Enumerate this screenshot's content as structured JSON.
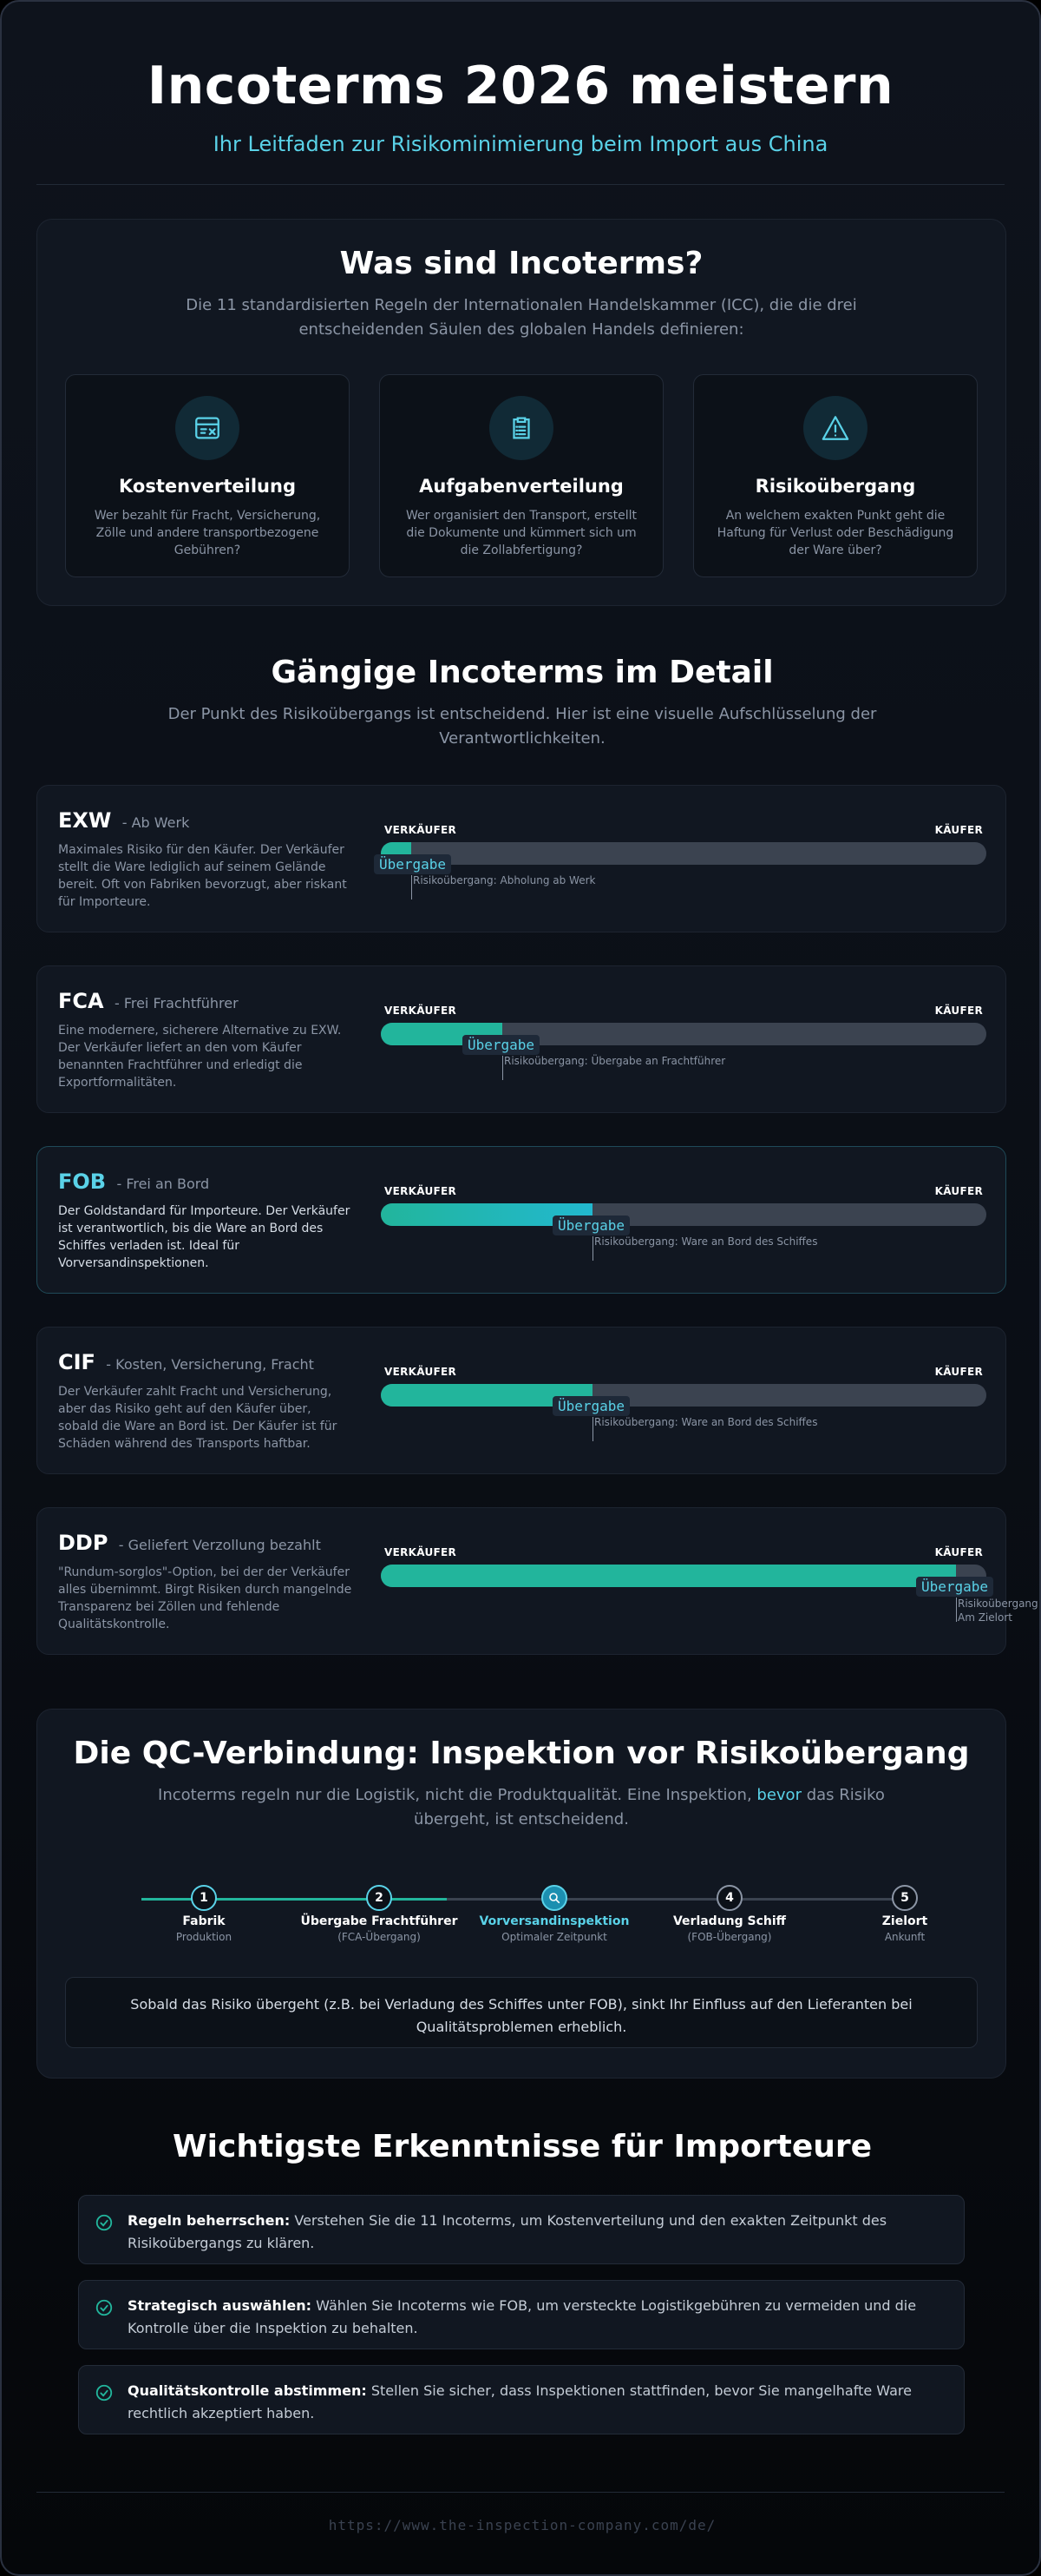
{
  "hero": {
    "title": "Incoterms 2026 meistern",
    "subtitle": "Ihr Leitfaden zur Risikominimierung beim Import aus China"
  },
  "intro": {
    "title": "Was sind Incoterms?",
    "subtitle": "Die 11 standardisierten Regeln der Internationalen Handelskammer (ICC), die die drei entscheidenden Säulen des globalen Handels definieren:",
    "cards": [
      {
        "icon": "invoice-icon",
        "title": "Kostenverteilung",
        "text": "Wer bezahlt für Fracht, Versicherung, Zölle und andere transportbezogene Gebühren?"
      },
      {
        "icon": "clipboard-list-icon",
        "title": "Aufgabenverteilung",
        "text": "Wer organisiert den Transport, erstellt die Dokumente und kümmert sich um die Zollabfertigung?"
      },
      {
        "icon": "warning-triangle-icon",
        "title": "Risikoübergang",
        "text": "An welchem exakten Punkt geht die Haftung für Verlust oder Beschädigung der Ware über?"
      }
    ]
  },
  "details": {
    "title": "Gängige Incoterms im Detail",
    "subtitle": "Der Punkt des Risikoübergangs ist entscheidend. Hier ist eine visuelle Aufschlüsselung der Verantwortlichkeiten.",
    "seller_label": "VERKÄUFER",
    "buyer_label": "KÄUFER",
    "handover_label": "Übergabe",
    "terms": [
      {
        "code": "EXW",
        "name": "- Ab Werk",
        "desc": "Maximales Risiko für den Käufer. Der Verkäufer stellt die Ware lediglich auf seinem Gelände bereit. Oft von Fabriken bevorzugt, aber riskant für Importeure.",
        "seller_share": 0.05,
        "note": "Risikoübergang: Abholung ab Werk",
        "highlight": false
      },
      {
        "code": "FCA",
        "name": "- Frei Frachtführer",
        "desc": "Eine modernere, sicherere Alternative zu EXW. Der Verkäufer liefert an den vom Käufer benannten Frachtführer und erledigt die Exportformalitäten.",
        "seller_share": 0.2,
        "note": "Risikoübergang: Übergabe an Frachtführer",
        "highlight": false
      },
      {
        "code": "FOB",
        "name": "- Frei an Bord",
        "desc": "Der Goldstandard für Importeure. Der Verkäufer ist verantwortlich, bis die Ware an Bord des Schiffes verladen ist. Ideal für Vorversandinspektionen.",
        "seller_share": 0.35,
        "note": "Risikoübergang: Ware an Bord des Schiffes",
        "highlight": true
      },
      {
        "code": "CIF",
        "name": "- Kosten, Versicherung, Fracht",
        "desc": "Der Verkäufer zahlt Fracht und Versicherung, aber das Risiko geht auf den Käufer über, sobald die Ware an Bord ist. Der Käufer ist für Schäden während des Transports haftbar.",
        "seller_share": 0.35,
        "note": "Risikoübergang: Ware an Bord des Schiffes",
        "highlight": false
      },
      {
        "code": "DDP",
        "name": "- Geliefert Verzollung bezahlt",
        "desc": "\"Rundum-sorglos\"-Option, bei der der Verkäufer alles übernimmt. Birgt Risiken durch mangelnde Transparenz bei Zöllen und fehlende Qualitätskontrolle.",
        "seller_share": 0.95,
        "note": "Risikoübergang: Am Zielort",
        "highlight": false
      }
    ]
  },
  "qc": {
    "title": "Die QC-Verbindung: Inspektion vor Risikoübergang",
    "subtitle_before": "Incoterms regeln nur die Logistik, nicht die Produktqualität. Eine Inspektion, ",
    "subtitle_emph": "bevor",
    "subtitle_after": " das Risiko übergeht, ist entscheidend.",
    "steps": [
      {
        "num": "1",
        "title": "Fabrik",
        "sub": "Produktion",
        "state": "done"
      },
      {
        "num": "2",
        "title": "Übergabe Frachtführer",
        "sub": "(FCA-Übergang)",
        "state": "done"
      },
      {
        "num": "",
        "title": "Vorversandinspektion",
        "sub": "Optimaler Zeitpunkt",
        "state": "active"
      },
      {
        "num": "4",
        "title": "Verladung Schiff",
        "sub": "(FOB-Übergang)",
        "state": "future"
      },
      {
        "num": "5",
        "title": "Zielort",
        "sub": "Ankunft",
        "state": "future"
      }
    ],
    "note": "Sobald das Risiko übergeht (z.B. bei Verladung des Schiffes unter FOB), sinkt Ihr Einfluss auf den Lieferanten bei Qualitätsproblemen erheblich."
  },
  "takeaways": {
    "title": "Wichtigste Erkenntnisse für Importeure",
    "items": [
      {
        "bold": "Regeln beherrschen:",
        "text": " Verstehen Sie die 11 Incoterms, um Kostenverteilung und den exakten Zeitpunkt des Risikoübergangs zu klären."
      },
      {
        "bold": "Strategisch auswählen:",
        "text": " Wählen Sie Incoterms wie FOB, um versteckte Logistikgebühren zu vermeiden und die Kontrolle über die Inspektion zu behalten."
      },
      {
        "bold": "Qualitätskontrolle abstimmen:",
        "text": " Stellen Sie sicher, dass Inspektionen stattfinden, bevor Sie mangelhafte Ware rechtlich akzeptiert haben."
      }
    ]
  },
  "footer": {
    "url": "https://www.the-inspection-company.com/de/"
  },
  "colors": {
    "accent": "#5ad2e8",
    "teal": "#22b59c",
    "fob": "#22b8cf"
  }
}
